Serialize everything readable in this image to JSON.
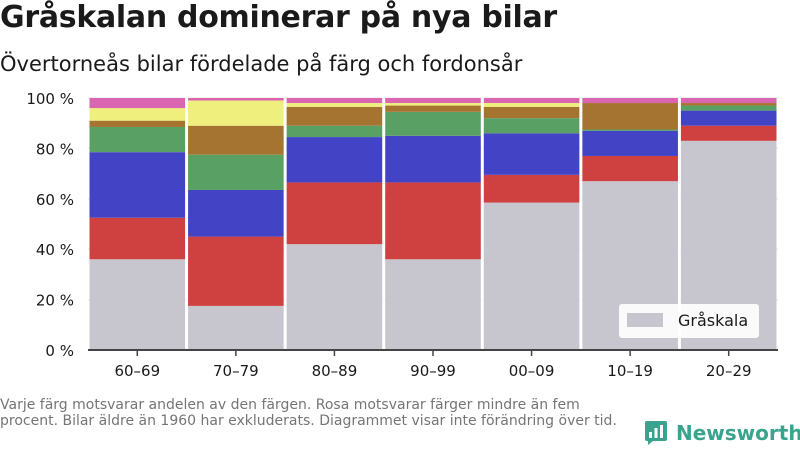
{
  "header": {
    "title": "Gråskalan dominerar på nya bilar",
    "subtitle": "Övertorneås bilar fördelade på färg och fordonsår"
  },
  "footer": {
    "note": "Varje färg motsvarar andelen av den färgen. Rosa motsvarar färger mindre än fem procent. Bilar äldre än 1960 har exkluderats. Diagrammet visar inte förändring över tid.",
    "brand": "Newsworthy"
  },
  "colors": {
    "grayscale": "#c7c6ce",
    "red": "#cf4141",
    "blue": "#4343c6",
    "green": "#58a063",
    "brown": "#a57430",
    "yellow": "#efef7e",
    "pink": "#da65b0",
    "brand": "#3aa38e"
  },
  "chart_data": {
    "type": "bar",
    "stacked": true,
    "categories": [
      "60–69",
      "70–79",
      "80–89",
      "90–99",
      "00–09",
      "10–19",
      "20–29"
    ],
    "yticks": [
      "0 %",
      "20 %",
      "40 %",
      "60 %",
      "80 %",
      "100 %"
    ],
    "ylim": [
      0,
      100
    ],
    "grid": true,
    "legend": {
      "position": "bottom-right",
      "entries": [
        "Gråskala"
      ]
    },
    "series": [
      {
        "name": "Gråskala",
        "color": "grayscale",
        "values": [
          36,
          17.5,
          42,
          36,
          58.5,
          67,
          83
        ]
      },
      {
        "color": "red",
        "values": [
          16.5,
          27.5,
          24.5,
          30.5,
          11,
          10,
          6
        ]
      },
      {
        "color": "blue",
        "values": [
          26,
          18.5,
          18,
          18.5,
          16.5,
          10,
          6
        ]
      },
      {
        "color": "green",
        "values": [
          10,
          14,
          4.5,
          9.5,
          6,
          0.5,
          2
        ]
      },
      {
        "color": "brown",
        "values": [
          2.5,
          11.5,
          7.5,
          2.5,
          4.5,
          10.5,
          1
        ]
      },
      {
        "color": "yellow",
        "values": [
          5,
          10,
          1.5,
          1,
          1.5,
          0,
          0
        ]
      },
      {
        "color": "pink",
        "values": [
          4,
          1,
          2,
          2,
          2,
          2,
          2
        ]
      }
    ]
  }
}
